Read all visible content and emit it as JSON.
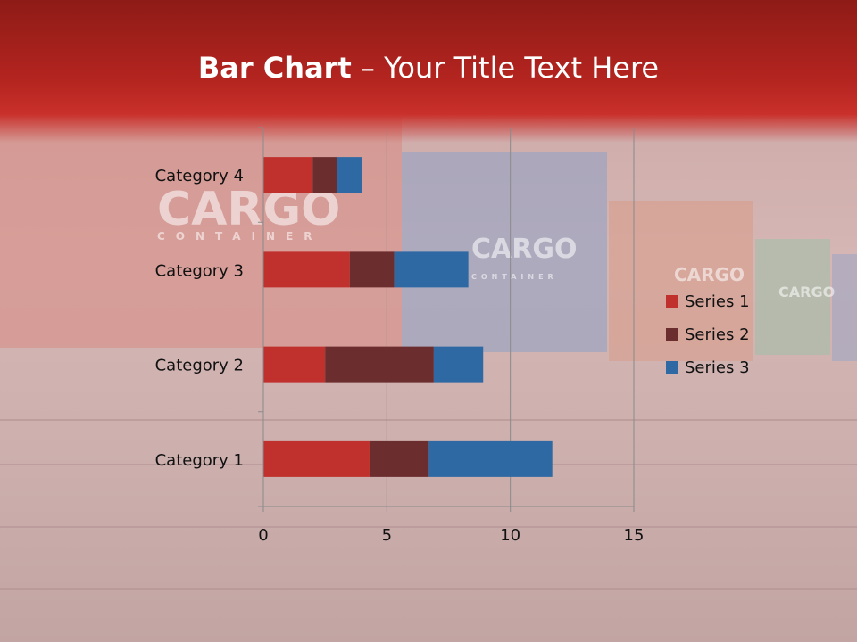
{
  "slide": {
    "title_bold": "Bar Chart",
    "title_rest": " – Your Title Text Here"
  },
  "background": {
    "container_label": "CARGO",
    "container_sub": "CONTAINER"
  },
  "colors": {
    "header": "#b3241f",
    "series1": "#c0302c",
    "series2": "#6b2d2e",
    "series3": "#2e69a3"
  },
  "chart_data": {
    "type": "bar",
    "orientation": "horizontal",
    "stacked": true,
    "categories": [
      "Category 1",
      "Category 2",
      "Category 3",
      "Category 4"
    ],
    "series": [
      {
        "name": "Series 1",
        "values": [
          4.3,
          2.5,
          3.5,
          2.0
        ]
      },
      {
        "name": "Series 2",
        "values": [
          2.4,
          4.4,
          1.8,
          1.0
        ]
      },
      {
        "name": "Series 3",
        "values": [
          5.0,
          2.0,
          3.0,
          1.0
        ]
      }
    ],
    "xlim": [
      0,
      15
    ],
    "xticks": [
      "0",
      "5",
      "10",
      "15"
    ],
    "grid": true,
    "legend": "right"
  }
}
